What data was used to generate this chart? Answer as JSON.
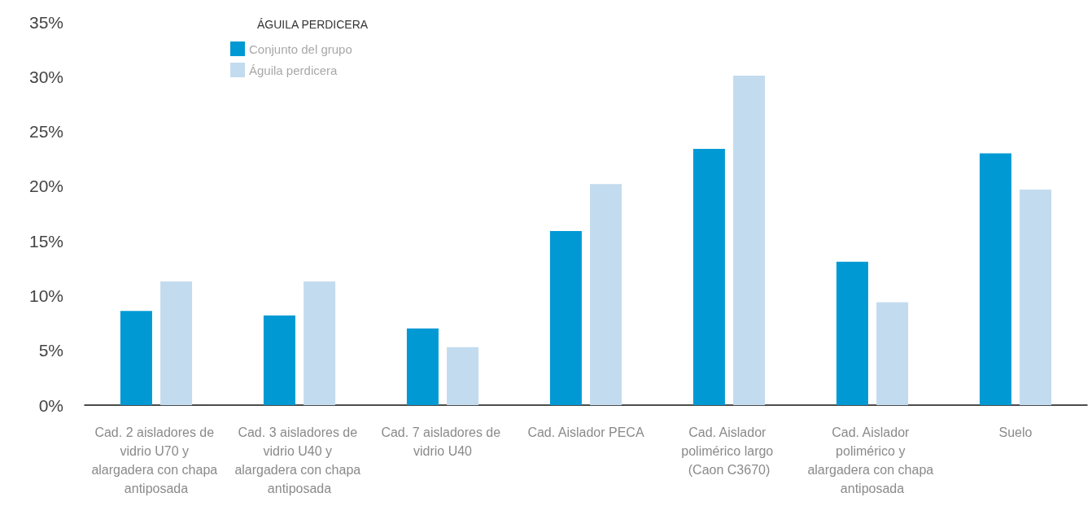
{
  "chart_data": {
    "type": "bar",
    "legend_title": "ÁGUILA PERDICERA",
    "categories": [
      "Cad. 2 aisladores de vidrio U70 y alargadera con chapa antiposada",
      "Cad. 3 aisladores de vidrio U40 y alargadera con chapa antiposada",
      "Cad. 7 aisladores de vidrio U40",
      "Cad. Aislador PECA",
      "Cad. Aislador polimérico largo (Caon C3670)",
      "Cad. Aislador polimérico y alargadera con chapa antiposada",
      "Suelo"
    ],
    "series": [
      {
        "name": "Conjunto del grupo",
        "color": "#0099d3",
        "values": [
          8.6,
          8.2,
          7.0,
          15.9,
          23.4,
          13.1,
          23.0
        ]
      },
      {
        "name": "Águila perdicera",
        "color": "#c3dbee",
        "values": [
          11.3,
          11.3,
          5.3,
          20.2,
          30.1,
          9.4,
          19.7
        ]
      }
    ],
    "ylim": [
      0,
      35
    ],
    "yticks": [
      {
        "value": 0,
        "label": "0%"
      },
      {
        "value": 5,
        "label": "5%"
      },
      {
        "value": 10,
        "label": "10%"
      },
      {
        "value": 15,
        "label": "15%"
      },
      {
        "value": 20,
        "label": "20%"
      },
      {
        "value": 25,
        "label": "25%"
      },
      {
        "value": 30,
        "label": "30%"
      },
      {
        "value": 35,
        "label": "35%"
      }
    ],
    "grid": false,
    "legend": "top left"
  }
}
